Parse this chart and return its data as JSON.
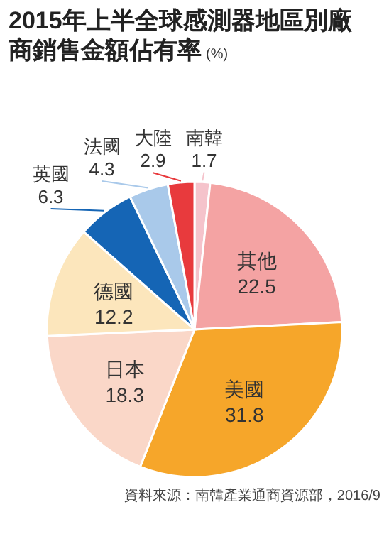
{
  "chart_data": {
    "type": "pie",
    "title": "2015年上半全球感測器地區別廠商銷售金額佔有率",
    "subtitle": "(%)",
    "categories": [
      "南韓",
      "其他",
      "美國",
      "日本",
      "德國",
      "英國",
      "法國",
      "大陸"
    ],
    "values": [
      1.7,
      22.5,
      31.8,
      18.3,
      12.2,
      6.3,
      4.3,
      2.9
    ],
    "colors": [
      "#f5c3cb",
      "#f4a3a3",
      "#f6a62a",
      "#fad7c8",
      "#fce6bc",
      "#1565b5",
      "#a9c9ea",
      "#e83a3d"
    ],
    "data_labels": true,
    "annotations": [
      "資料來源：南韓產業通商資源部，2016/9"
    ]
  }
}
